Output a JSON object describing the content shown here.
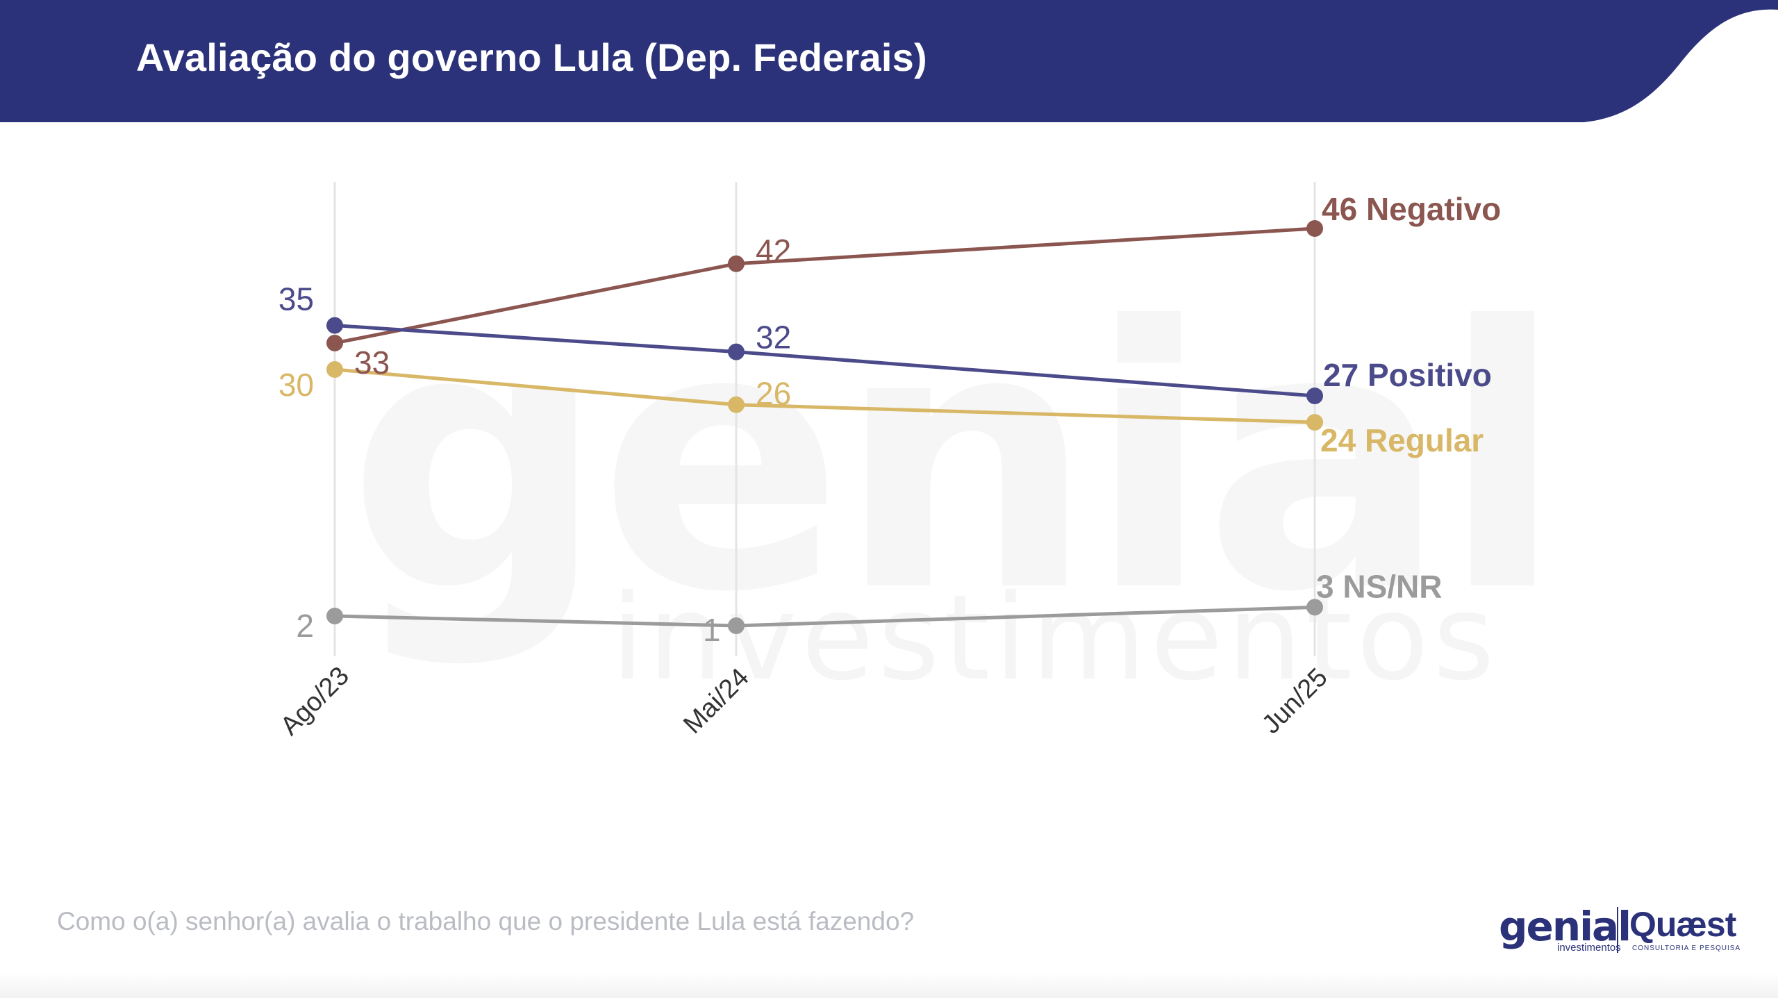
{
  "header": {
    "title": "Avaliação do governo Lula (Dep. Federais)",
    "color": "#2b3279"
  },
  "footer": {
    "question": "Como o(a) senhor(a) avalia o trabalho que o presidente Lula está fazendo?"
  },
  "logos": {
    "genial": "genial",
    "genial_sub": "investimentos",
    "quaest": "Quæst",
    "quaest_sub": "CONSULTORIA E PESQUISA"
  },
  "watermark": {
    "word": "genial",
    "sub": "investimentos"
  },
  "chart_data": {
    "type": "line",
    "title": "",
    "xlabel": "",
    "ylabel": "",
    "categories": [
      "Ago/23",
      "Mai/24",
      "Jun/25"
    ],
    "grid": "vertical",
    "legend": "end-labels",
    "series": [
      {
        "name": "Negativo",
        "values": [
          33,
          42,
          46
        ],
        "color": "#8b5550"
      },
      {
        "name": "Positivo",
        "values": [
          35,
          32,
          27
        ],
        "color": "#4b4a8a"
      },
      {
        "name": "Regular",
        "values": [
          30,
          26,
          24
        ],
        "color": "#d8b766"
      },
      {
        "name": "NS/NR",
        "values": [
          2,
          1,
          3
        ],
        "color": "#9b9b9b"
      }
    ]
  }
}
